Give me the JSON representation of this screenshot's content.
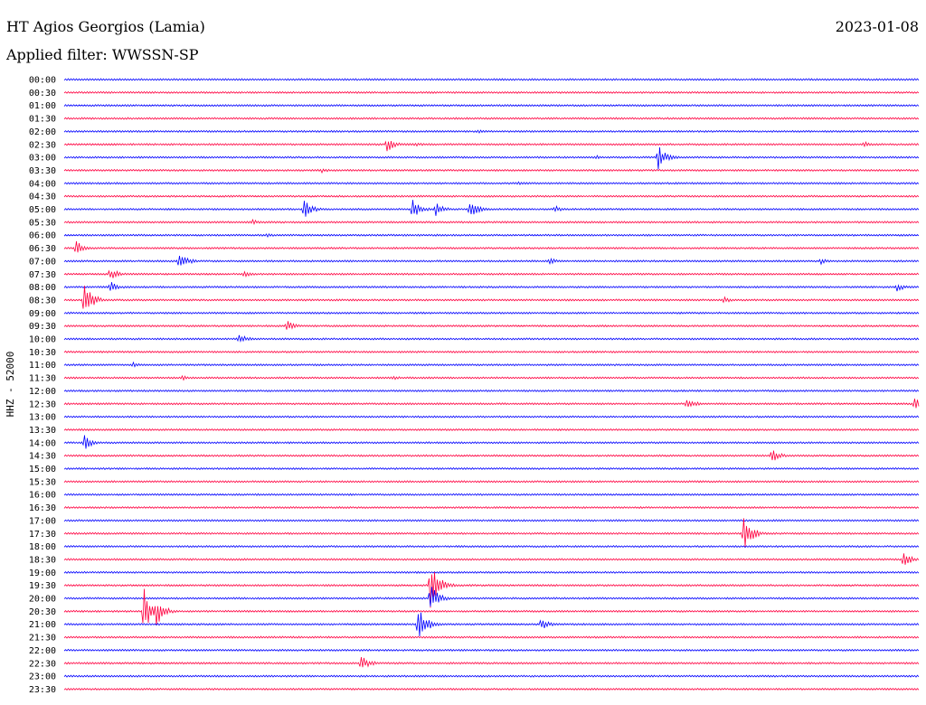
{
  "header": {
    "station": "HT Agios Georgios (Lamia)",
    "filter": "Applied filter: WWSSN-SP",
    "date": "2023-01-08"
  },
  "colors": {
    "blue": "#0000ff",
    "red": "#ff0040",
    "background": "#ffffff",
    "text": "#000000"
  },
  "chart_data": {
    "type": "line",
    "title": "HT Agios Georgios (Lamia)",
    "subtitle": "Applied filter: WWSSN-SP",
    "ylabel": "HHZ - 52000",
    "xlabel": "",
    "grid": false,
    "row_labels": [
      "00:00",
      "00:30",
      "01:00",
      "01:30",
      "02:00",
      "02:30",
      "03:00",
      "03:30",
      "04:00",
      "04:30",
      "05:00",
      "05:30",
      "06:00",
      "06:30",
      "07:00",
      "07:30",
      "08:00",
      "08:30",
      "09:00",
      "09:30",
      "10:00",
      "10:30",
      "11:00",
      "11:30",
      "12:00",
      "12:30",
      "13:00",
      "13:30",
      "14:00",
      "14:30",
      "15:00",
      "15:30",
      "16:00",
      "16:30",
      "17:00",
      "17:30",
      "18:00",
      "18:30",
      "19:00",
      "19:30",
      "20:00",
      "20:30",
      "21:00",
      "21:30",
      "22:00",
      "22:30",
      "23:00",
      "23:30"
    ],
    "row_colors": [
      "blue",
      "red"
    ],
    "events": [
      {
        "row": 4,
        "minute": 14.5,
        "amp": 3
      },
      {
        "row": 5,
        "minute": 11.3,
        "amp": 9
      },
      {
        "row": 5,
        "minute": 12.3,
        "amp": 3
      },
      {
        "row": 5,
        "minute": 28.0,
        "amp": 4
      },
      {
        "row": 6,
        "minute": 20.8,
        "amp": 16
      },
      {
        "row": 6,
        "minute": 18.6,
        "amp": 3
      },
      {
        "row": 7,
        "minute": 9.0,
        "amp": 3
      },
      {
        "row": 8,
        "minute": 15.9,
        "amp": 3
      },
      {
        "row": 10,
        "minute": 8.4,
        "amp": 11
      },
      {
        "row": 10,
        "minute": 12.2,
        "amp": 12
      },
      {
        "row": 10,
        "minute": 13.0,
        "amp": 9
      },
      {
        "row": 10,
        "minute": 14.2,
        "amp": 11
      },
      {
        "row": 10,
        "minute": 17.2,
        "amp": 4
      },
      {
        "row": 11,
        "minute": 6.6,
        "amp": 3
      },
      {
        "row": 12,
        "minute": 7.1,
        "amp": 3
      },
      {
        "row": 13,
        "minute": 0.4,
        "amp": 9
      },
      {
        "row": 14,
        "minute": 4.0,
        "amp": 12
      },
      {
        "row": 14,
        "minute": 17.0,
        "amp": 4
      },
      {
        "row": 14,
        "minute": 26.5,
        "amp": 4
      },
      {
        "row": 15,
        "minute": 1.6,
        "amp": 8
      },
      {
        "row": 15,
        "minute": 6.3,
        "amp": 4
      },
      {
        "row": 16,
        "minute": 1.6,
        "amp": 7
      },
      {
        "row": 16,
        "minute": 29.2,
        "amp": 5
      },
      {
        "row": 17,
        "minute": 0.7,
        "amp": 20
      },
      {
        "row": 17,
        "minute": 23.1,
        "amp": 4
      },
      {
        "row": 19,
        "minute": 7.8,
        "amp": 7
      },
      {
        "row": 20,
        "minute": 6.1,
        "amp": 7
      },
      {
        "row": 22,
        "minute": 2.4,
        "amp": 3
      },
      {
        "row": 23,
        "minute": 4.1,
        "amp": 4
      },
      {
        "row": 23,
        "minute": 11.5,
        "amp": 3
      },
      {
        "row": 25,
        "minute": 21.8,
        "amp": 8
      },
      {
        "row": 25,
        "minute": 29.8,
        "amp": 10
      },
      {
        "row": 28,
        "minute": 0.7,
        "amp": 9
      },
      {
        "row": 29,
        "minute": 24.8,
        "amp": 8
      },
      {
        "row": 35,
        "minute": 23.8,
        "amp": 22
      },
      {
        "row": 37,
        "minute": 29.4,
        "amp": 10
      },
      {
        "row": 39,
        "minute": 12.8,
        "amp": 35
      },
      {
        "row": 40,
        "minute": 12.8,
        "amp": 18
      },
      {
        "row": 41,
        "minute": 2.8,
        "amp": 28
      },
      {
        "row": 41,
        "minute": 3.2,
        "amp": 18
      },
      {
        "row": 42,
        "minute": 12.4,
        "amp": 22
      },
      {
        "row": 42,
        "minute": 16.7,
        "amp": 8
      },
      {
        "row": 45,
        "minute": 10.4,
        "amp": 10
      }
    ]
  }
}
